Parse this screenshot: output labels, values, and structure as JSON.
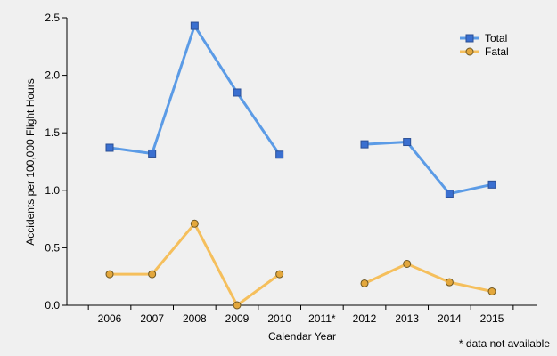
{
  "chart_data": {
    "type": "line",
    "categories": [
      "2006",
      "2007",
      "2008",
      "2009",
      "2010",
      "2011*",
      "2012",
      "2013",
      "2014",
      "2015"
    ],
    "series": [
      {
        "name": "Total",
        "color": "#5b9be6",
        "marker_fill": "#3a6fd0",
        "marker": "square",
        "values": [
          1.37,
          1.32,
          2.43,
          1.85,
          1.31,
          null,
          1.4,
          1.42,
          0.97,
          1.05
        ]
      },
      {
        "name": "Fatal",
        "color": "#f5bf5c",
        "marker_fill": "#e3a73c",
        "marker": "circle",
        "values": [
          0.27,
          0.27,
          0.71,
          0.0,
          0.27,
          null,
          0.19,
          0.36,
          0.2,
          0.12
        ]
      }
    ],
    "xlabel": "Calendar Year",
    "ylabel": "Accidents per 100,000 Flight Hours",
    "ylim": [
      0,
      2.5
    ],
    "yticks": [
      "0.0",
      "0.5",
      "1.0",
      "1.5",
      "2.0",
      "2.5"
    ],
    "grid": false,
    "legend_position": "top-right",
    "footnote": "* data not available"
  }
}
